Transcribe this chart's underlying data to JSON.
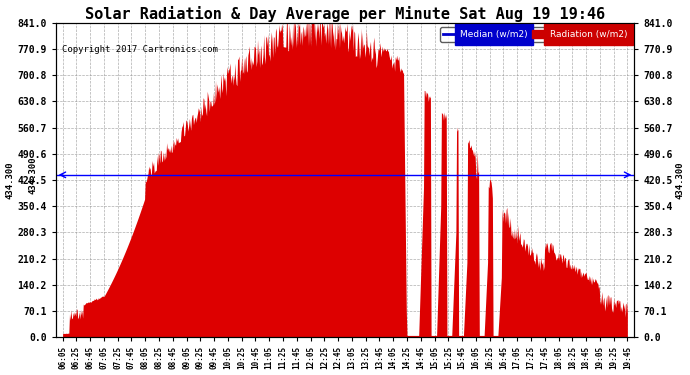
{
  "title": "Solar Radiation & Day Average per Minute Sat Aug 19 19:46",
  "copyright": "Copyright 2017 Cartronics.com",
  "median_value": 434.3,
  "y_max": 841.0,
  "y_min": 0.0,
  "y_ticks": [
    0.0,
    70.1,
    140.2,
    210.2,
    280.3,
    350.4,
    420.5,
    490.6,
    560.7,
    630.8,
    700.8,
    770.9,
    841.0
  ],
  "median_label": "434.300",
  "median_color": "#0000ff",
  "radiation_fill_color": "#dd0000",
  "background_color": "#ffffff",
  "grid_color": "#aaaaaa",
  "title_fontsize": 11,
  "legend_median_color": "#0000cc",
  "legend_radiation_color": "#cc0000",
  "x_tick_labels": [
    "06:05",
    "06:25",
    "06:45",
    "07:05",
    "07:25",
    "07:45",
    "08:05",
    "08:25",
    "08:45",
    "09:05",
    "09:25",
    "09:45",
    "10:05",
    "10:25",
    "10:45",
    "11:05",
    "11:25",
    "11:45",
    "12:05",
    "12:25",
    "12:45",
    "13:05",
    "13:25",
    "13:45",
    "14:05",
    "14:25",
    "14:45",
    "15:05",
    "15:25",
    "15:45",
    "16:05",
    "16:25",
    "16:45",
    "17:05",
    "17:25",
    "17:45",
    "18:05",
    "18:25",
    "18:45",
    "19:05",
    "19:25",
    "19:45"
  ]
}
